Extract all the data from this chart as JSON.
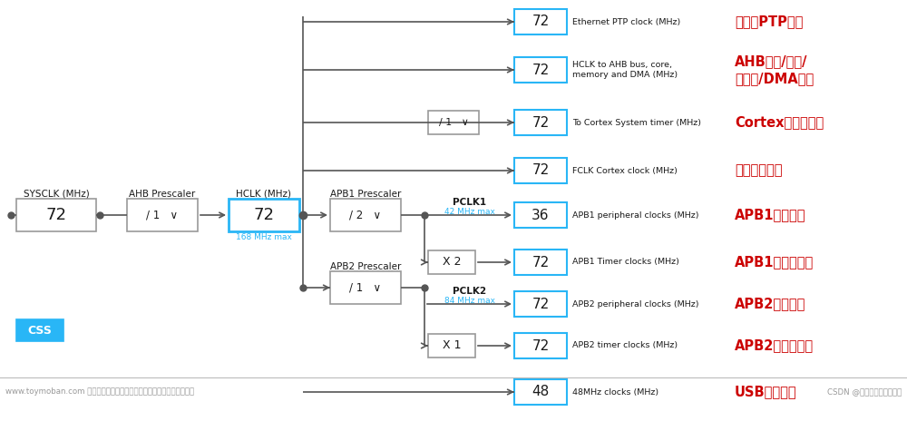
{
  "bg_color": "#ffffff",
  "box_border_gray": "#999999",
  "box_border_blue": "#29B6F6",
  "box_fill_blue": "#29B6F6",
  "text_dark": "#1a1a1a",
  "text_blue": "#29B6F6",
  "text_red": "#cc0000",
  "text_gray": "#666666",
  "line_color": "#555555",
  "footer_sep_color": "#bbbbbb",
  "sysclk_val": "72",
  "ahb_val": "/ 1   ∨",
  "hclk_val": "72",
  "hclk_sub": "168 MHz max",
  "apb1_val": "/ 2   ∨",
  "apb2_val": "/ 1   ∨",
  "div1_val": "/ 1   ∨",
  "pclk1_label": "PCLK1",
  "pclk1_sub": "42 MHz max",
  "pclk2_label": "PCLK2",
  "pclk2_sub": "84 MHz max",
  "x2_val": "X 2",
  "x1_val": "X 1",
  "css_label": "CSS",
  "outputs": [
    {
      "val": "72",
      "desc": "Ethernet PTP clock (MHz)",
      "cn": "以太网PTP时钟"
    },
    {
      "val": "72",
      "desc": "HCLK to AHB bus, core,\nmemory and DMA (MHz)",
      "cn": "AHB总线/内核/\n存储器/DMA时钟"
    },
    {
      "val": "72",
      "desc": "To Cortex System timer (MHz)",
      "cn": "Cortex系统定时器"
    },
    {
      "val": "72",
      "desc": "FCLK Cortex clock (MHz)",
      "cn": "自由运行时钟"
    },
    {
      "val": "36",
      "desc": "APB1 peripheral clocks (MHz)",
      "cn": "APB1外设时钟"
    },
    {
      "val": "72",
      "desc": "APB1 Timer clocks (MHz)",
      "cn": "APB1定时器时钟"
    },
    {
      "val": "72",
      "desc": "APB2 peripheral clocks (MHz)",
      "cn": "APB2外设时钟"
    },
    {
      "val": "72",
      "desc": "APB2 timer clocks (MHz)",
      "cn": "APB2定时器时钟"
    },
    {
      "val": "48",
      "desc": "48MHz clocks (MHz)",
      "cn": "USB功能时钟"
    }
  ],
  "footer_left": "www.toymoban.com 网络图片仅供展示，非存储，如有侵权请联系删除。",
  "footer_right": "CSDN @嘴角那抒居强的微笑"
}
